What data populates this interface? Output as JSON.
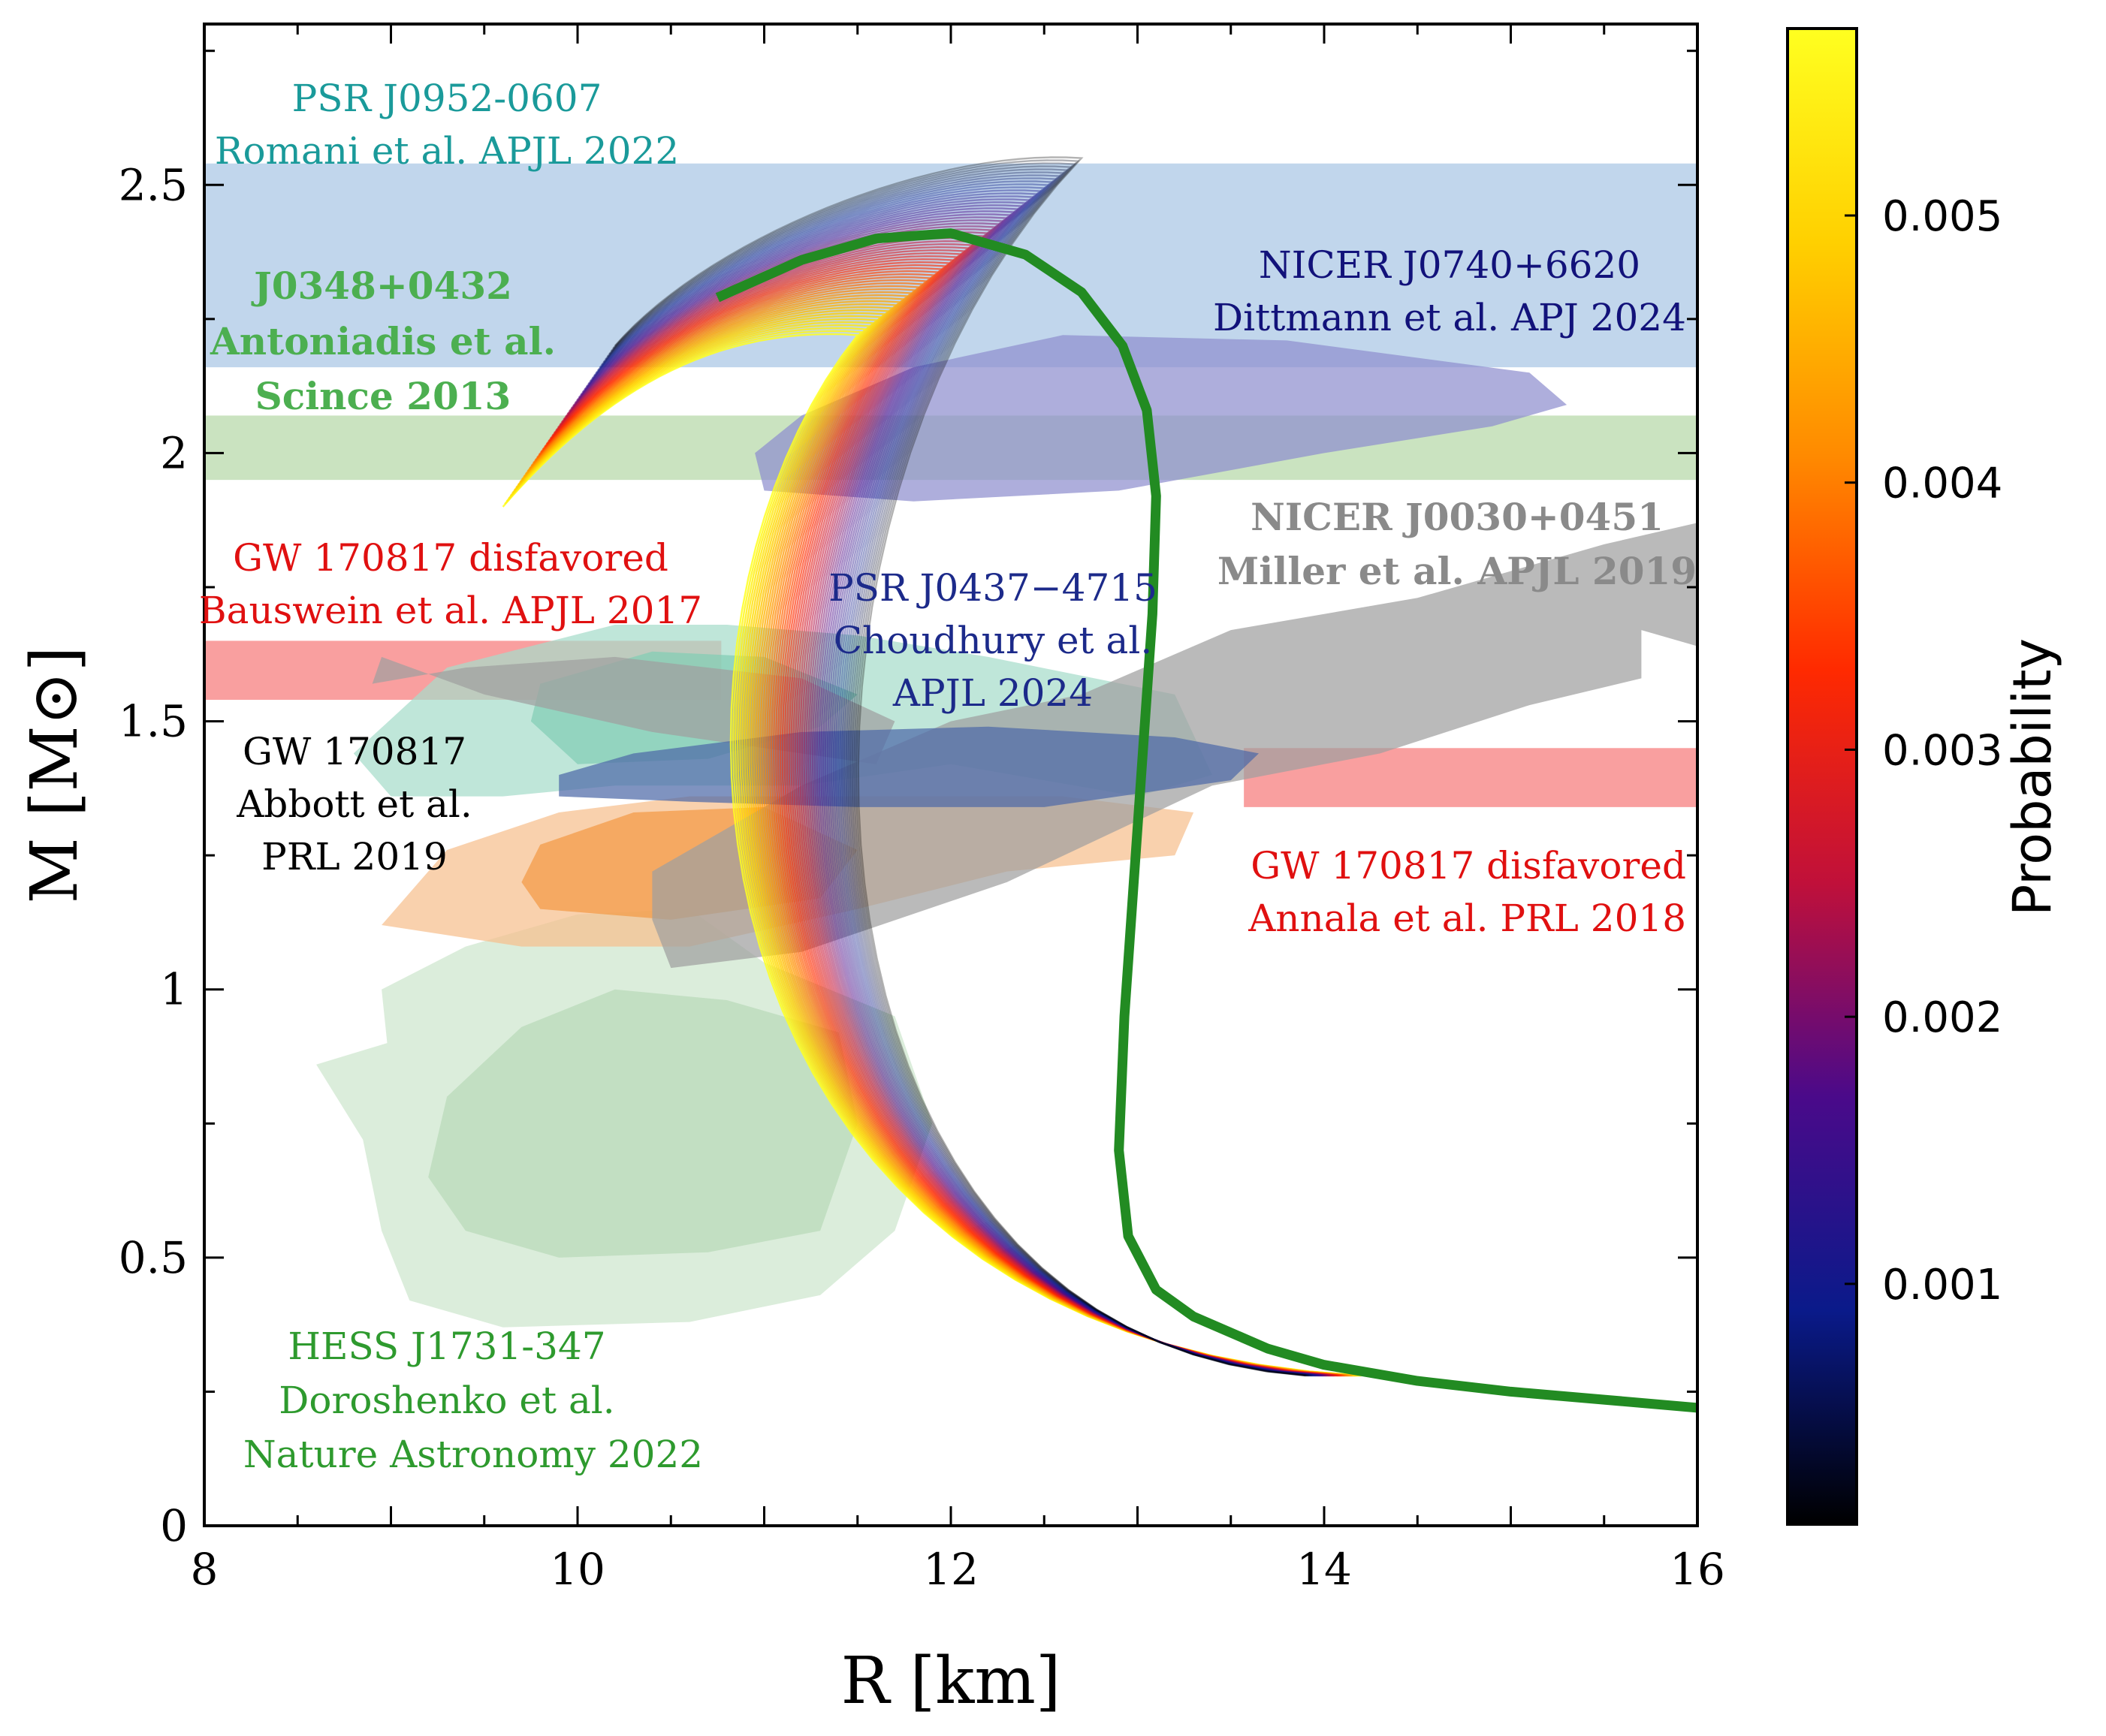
{
  "chart_data": {
    "type": "line",
    "xlabel": "R [km]",
    "ylabel": "M [M⊙]",
    "xlim": [
      8,
      16
    ],
    "ylim": [
      0,
      2.8
    ],
    "x_ticks": [
      {
        "value": 8,
        "label": "8"
      },
      {
        "value": 10,
        "label": "10"
      },
      {
        "value": 12,
        "label": "12"
      },
      {
        "value": 14,
        "label": "14"
      },
      {
        "value": 16,
        "label": "16"
      }
    ],
    "y_ticks": [
      {
        "value": 0,
        "label": "0"
      },
      {
        "value": 0.5,
        "label": "0.5"
      },
      {
        "value": 1,
        "label": "1"
      },
      {
        "value": 1.5,
        "label": "1.5"
      },
      {
        "value": 2,
        "label": "2"
      },
      {
        "value": 2.5,
        "label": "2.5"
      }
    ],
    "colorbar": {
      "label": "Probability",
      "range": [
        0.0001,
        0.0057
      ],
      "ticks": [
        {
          "value": 0.001,
          "label": "0.001"
        },
        {
          "value": 0.002,
          "label": "0.002"
        },
        {
          "value": 0.003,
          "label": "0.003"
        },
        {
          "value": 0.004,
          "label": "0.004"
        },
        {
          "value": 0.005,
          "label": "0.005"
        }
      ],
      "colormap": [
        "#000000",
        "#0a1a8a",
        "#4a0a8a",
        "#c0103a",
        "#ff2a00",
        "#ff8a00",
        "#ffd000",
        "#ffff20"
      ]
    },
    "bands": [
      {
        "id": "j0952",
        "m_min": 2.16,
        "m_max": 2.54,
        "r_min": 8,
        "r_max": 16,
        "color": "#a9c6e4"
      },
      {
        "id": "j0348",
        "m_min": 1.95,
        "m_max": 2.07,
        "r_min": 8,
        "r_max": 16,
        "color": "#b5d8a8"
      },
      {
        "id": "bauswein",
        "m_min": 1.54,
        "m_max": 1.65,
        "r_min": 8,
        "r_max": 10.77,
        "color": "#f88a8a"
      },
      {
        "id": "annala",
        "m_min": 1.34,
        "m_max": 1.45,
        "r_min": 13.57,
        "r_max": 16,
        "color": "#f88a8a"
      }
    ],
    "regions": [
      {
        "id": "hess_outer",
        "color": "#cde6cd",
        "points": [
          [
            9.1,
            0.42
          ],
          [
            9.6,
            0.37
          ],
          [
            10.6,
            0.38
          ],
          [
            11.3,
            0.43
          ],
          [
            11.7,
            0.55
          ],
          [
            11.9,
            0.75
          ],
          [
            11.7,
            0.95
          ],
          [
            11.0,
            1.05
          ],
          [
            10.6,
            1.15
          ],
          [
            10.0,
            1.14
          ],
          [
            9.4,
            1.08
          ],
          [
            8.95,
            1.0
          ],
          [
            8.98,
            0.9
          ],
          [
            8.6,
            0.86
          ],
          [
            8.85,
            0.72
          ],
          [
            8.95,
            0.55
          ]
        ]
      },
      {
        "id": "hess_inner",
        "color": "#b8dab8",
        "points": [
          [
            9.4,
            0.55
          ],
          [
            9.9,
            0.5
          ],
          [
            10.7,
            0.51
          ],
          [
            11.3,
            0.55
          ],
          [
            11.5,
            0.75
          ],
          [
            11.4,
            0.92
          ],
          [
            10.8,
            0.98
          ],
          [
            10.2,
            1.0
          ],
          [
            9.7,
            0.93
          ],
          [
            9.3,
            0.8
          ],
          [
            9.2,
            0.65
          ]
        ]
      },
      {
        "id": "gw_teal",
        "color": "#a6dccb",
        "points": [
          [
            9.0,
            1.36
          ],
          [
            9.6,
            1.36
          ],
          [
            10.2,
            1.38
          ],
          [
            11.2,
            1.38
          ],
          [
            12.0,
            1.42
          ],
          [
            13.0,
            1.36
          ],
          [
            13.4,
            1.4
          ],
          [
            13.2,
            1.55
          ],
          [
            12.2,
            1.62
          ],
          [
            11.5,
            1.66
          ],
          [
            10.8,
            1.68
          ],
          [
            10.2,
            1.68
          ],
          [
            9.3,
            1.6
          ],
          [
            8.8,
            1.44
          ]
        ]
      },
      {
        "id": "gw_teal_inner",
        "color": "#82cdb4",
        "points": [
          [
            10.0,
            1.42
          ],
          [
            10.7,
            1.43
          ],
          [
            11.3,
            1.49
          ],
          [
            11.5,
            1.55
          ],
          [
            11.0,
            1.62
          ],
          [
            10.4,
            1.63
          ],
          [
            9.8,
            1.57
          ],
          [
            9.75,
            1.5
          ]
        ]
      },
      {
        "id": "gw_orange",
        "color": "#f7bf8d",
        "points": [
          [
            8.95,
            1.12
          ],
          [
            9.7,
            1.08
          ],
          [
            10.6,
            1.08
          ],
          [
            11.5,
            1.15
          ],
          [
            12.3,
            1.22
          ],
          [
            13.2,
            1.25
          ],
          [
            13.3,
            1.33
          ],
          [
            12.6,
            1.36
          ],
          [
            11.6,
            1.36
          ],
          [
            10.6,
            1.36
          ],
          [
            9.9,
            1.33
          ],
          [
            9.3,
            1.26
          ]
        ]
      },
      {
        "id": "gw_orange_inner",
        "color": "#f39a45",
        "points": [
          [
            9.8,
            1.15
          ],
          [
            10.5,
            1.13
          ],
          [
            11.3,
            1.17
          ],
          [
            11.5,
            1.26
          ],
          [
            11.0,
            1.34
          ],
          [
            10.3,
            1.33
          ],
          [
            9.8,
            1.27
          ],
          [
            9.7,
            1.2
          ]
        ]
      },
      {
        "id": "nicer_j0030",
        "color": "#a0a0a0",
        "points": [
          [
            10.5,
            1.04
          ],
          [
            11.2,
            1.07
          ],
          [
            12.3,
            1.2
          ],
          [
            13.4,
            1.38
          ],
          [
            14.3,
            1.44
          ],
          [
            15.1,
            1.53
          ],
          [
            15.7,
            1.58
          ],
          [
            15.7,
            1.67
          ],
          [
            16.0,
            1.64
          ],
          [
            16.0,
            1.87
          ],
          [
            15.5,
            1.83
          ],
          [
            14.5,
            1.73
          ],
          [
            13.5,
            1.67
          ],
          [
            12.7,
            1.55
          ],
          [
            12.0,
            1.5
          ],
          [
            11.2,
            1.38
          ],
          [
            10.4,
            1.22
          ],
          [
            10.4,
            1.13
          ]
        ]
      },
      {
        "id": "nicer_j0030_b",
        "color": "#a0a0a0",
        "points": [
          [
            8.9,
            1.57
          ],
          [
            9.4,
            1.6
          ],
          [
            10.2,
            1.62
          ],
          [
            11.2,
            1.58
          ],
          [
            11.7,
            1.5
          ],
          [
            11.6,
            1.42
          ],
          [
            10.4,
            1.48
          ],
          [
            9.5,
            1.55
          ],
          [
            8.95,
            1.62
          ]
        ]
      },
      {
        "id": "nicer_j0740",
        "color": "#8f8fcf",
        "points": [
          [
            11.0,
            1.93
          ],
          [
            11.8,
            1.91
          ],
          [
            12.9,
            1.93
          ],
          [
            14.0,
            2.0
          ],
          [
            14.9,
            2.05
          ],
          [
            15.3,
            2.09
          ],
          [
            15.1,
            2.15
          ],
          [
            13.8,
            2.21
          ],
          [
            12.6,
            2.22
          ],
          [
            11.8,
            2.16
          ],
          [
            11.2,
            2.07
          ],
          [
            10.95,
            2.0
          ]
        ]
      },
      {
        "id": "psr_j0437",
        "color": "#4d6aa8",
        "points": [
          [
            9.9,
            1.36
          ],
          [
            10.6,
            1.35
          ],
          [
            11.5,
            1.34
          ],
          [
            12.5,
            1.34
          ],
          [
            13.5,
            1.39
          ],
          [
            13.65,
            1.44
          ],
          [
            13.2,
            1.47
          ],
          [
            12.2,
            1.49
          ],
          [
            11.2,
            1.48
          ],
          [
            10.3,
            1.44
          ],
          [
            9.9,
            1.4
          ]
        ]
      }
    ],
    "best_fit_curve": {
      "color": "#228b22",
      "points": [
        [
          16.0,
          0.22
        ],
        [
          15.5,
          0.235
        ],
        [
          15.0,
          0.25
        ],
        [
          14.5,
          0.27
        ],
        [
          14.0,
          0.3
        ],
        [
          13.7,
          0.33
        ],
        [
          13.3,
          0.39
        ],
        [
          13.1,
          0.44
        ],
        [
          12.95,
          0.54
        ],
        [
          12.9,
          0.7
        ],
        [
          12.93,
          0.95
        ],
        [
          12.98,
          1.2
        ],
        [
          13.03,
          1.45
        ],
        [
          13.08,
          1.7
        ],
        [
          13.1,
          1.92
        ],
        [
          13.05,
          2.08
        ],
        [
          12.92,
          2.2
        ],
        [
          12.7,
          2.3
        ],
        [
          12.4,
          2.37
        ],
        [
          12.0,
          2.41
        ],
        [
          11.6,
          2.4
        ],
        [
          11.2,
          2.36
        ],
        [
          10.75,
          2.29
        ]
      ]
    },
    "ensemble": {
      "curve_count": 60,
      "low_r_start_range": [
        10.6,
        11.2
      ],
      "r_at_max_range": [
        11.5,
        12.7
      ],
      "m_max_range": [
        2.22,
        2.55
      ],
      "m_min": 0.28,
      "probability_range": [
        0.0001,
        0.0057
      ]
    }
  },
  "annotations": [
    {
      "id": "psr-j0952-title",
      "text": "PSR J0952-0607",
      "color": "#1a9a9a",
      "bold": false
    },
    {
      "id": "psr-j0952-ref",
      "text": "Romani et al. APJL 2022",
      "color": "#1a9a9a",
      "bold": false
    },
    {
      "id": "j0348-title",
      "text": "J0348+0432",
      "color": "#4caf50",
      "bold": true
    },
    {
      "id": "j0348-ref1",
      "text": "Antoniadis et al.",
      "color": "#4caf50",
      "bold": true
    },
    {
      "id": "j0348-ref2",
      "text": "Scince 2013",
      "color": "#4caf50",
      "bold": true
    },
    {
      "id": "nicer-j0740-title",
      "text": "NICER J0740+6620",
      "color": "#12127a",
      "bold": false
    },
    {
      "id": "nicer-j0740-ref",
      "text": "Dittmann et al. APJ 2024",
      "color": "#12127a",
      "bold": false
    },
    {
      "id": "nicer-j0030-title",
      "text": "NICER J0030+0451",
      "color": "#8a8a8a",
      "bold": true
    },
    {
      "id": "nicer-j0030-ref",
      "text": "Miller et al. APJL 2019",
      "color": "#8a8a8a",
      "bold": true
    },
    {
      "id": "bauswein-title",
      "text": "GW 170817 disfavored",
      "color": "#e01010",
      "bold": false
    },
    {
      "id": "bauswein-ref",
      "text": "Bauswein et al. APJL 2017",
      "color": "#e01010",
      "bold": false
    },
    {
      "id": "psr-j0437-title",
      "text": "PSR J0437−4715",
      "color": "#1c2a8a",
      "bold": false
    },
    {
      "id": "psr-j0437-ref1",
      "text": "Choudhury et al.",
      "color": "#1c2a8a",
      "bold": false
    },
    {
      "id": "psr-j0437-ref2",
      "text": "APJL 2024",
      "color": "#1c2a8a",
      "bold": false
    },
    {
      "id": "gw-title",
      "text": "GW 170817",
      "color": "#000000",
      "bold": false
    },
    {
      "id": "gw-ref1",
      "text": "Abbott et al.",
      "color": "#000000",
      "bold": false
    },
    {
      "id": "gw-ref2",
      "text": "PRL 2019",
      "color": "#000000",
      "bold": false
    },
    {
      "id": "annala-title",
      "text": "GW 170817 disfavored",
      "color": "#e01010",
      "bold": false
    },
    {
      "id": "annala-ref",
      "text": "Annala et al. PRL 2018",
      "color": "#e01010",
      "bold": false
    },
    {
      "id": "hess-title",
      "text": "HESS  J1731-347",
      "color": "#2e9a2e",
      "bold": false
    },
    {
      "id": "hess-ref1",
      "text": "Doroshenko et al.",
      "color": "#2e9a2e",
      "bold": false
    },
    {
      "id": "hess-ref2",
      "text": "Nature Astronomy 2022",
      "color": "#2e9a2e",
      "bold": false
    }
  ]
}
